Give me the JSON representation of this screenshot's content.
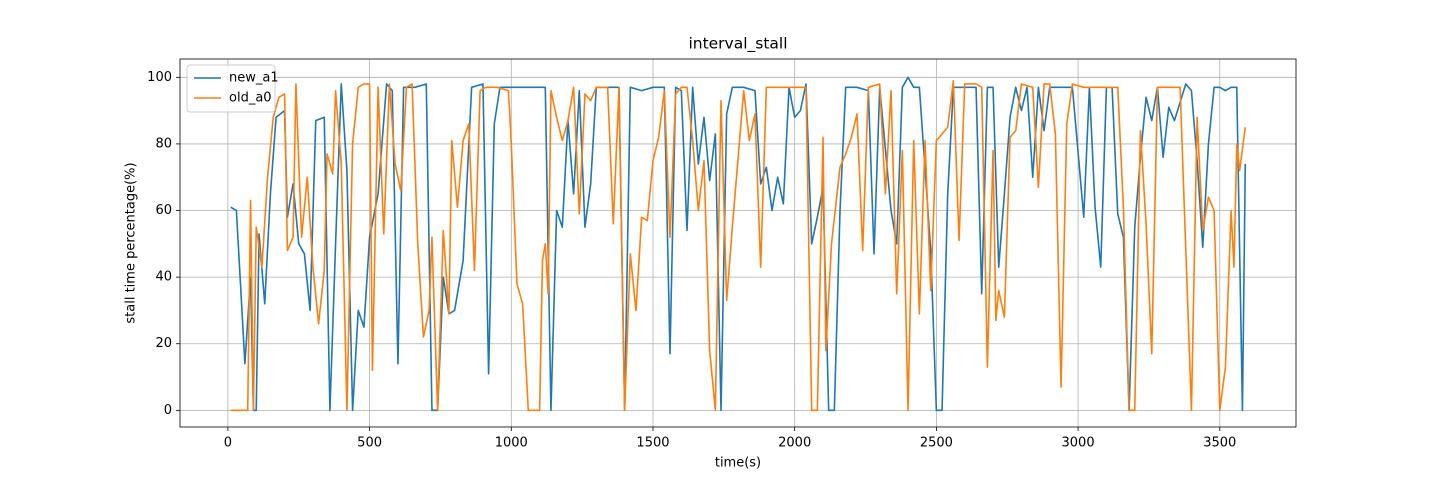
{
  "chart_data": {
    "type": "line",
    "title": "interval_stall",
    "x_label": "time(s)",
    "y_label": "stall time percentage(%)",
    "xlim": [
      -169,
      3769
    ],
    "ylim": [
      -5.0,
      105.5
    ],
    "xticks": [
      0,
      500,
      1000,
      1500,
      2000,
      2500,
      3000,
      3500
    ],
    "yticks": [
      0,
      20,
      40,
      60,
      80,
      100
    ],
    "grid": true,
    "legend": "upper left",
    "series": [
      {
        "name": "new_a1",
        "color": "#1f77b4",
        "x": [
          10,
          30,
          60,
          80,
          90,
          100,
          110,
          130,
          150,
          170,
          200,
          210,
          230,
          250,
          270,
          290,
          310,
          340,
          360,
          380,
          400,
          420,
          440,
          460,
          480,
          500,
          530,
          560,
          580,
          600,
          620,
          660,
          700,
          720,
          740,
          760,
          780,
          800,
          830,
          860,
          900,
          920,
          940,
          960,
          1000,
          1040,
          1080,
          1100,
          1120,
          1140,
          1160,
          1180,
          1200,
          1220,
          1240,
          1260,
          1280,
          1300,
          1340,
          1380,
          1400,
          1420,
          1460,
          1500,
          1540,
          1560,
          1580,
          1600,
          1620,
          1640,
          1660,
          1680,
          1700,
          1720,
          1740,
          1760,
          1780,
          1820,
          1860,
          1880,
          1900,
          1920,
          1940,
          1960,
          1980,
          2000,
          2020,
          2040,
          2060,
          2080,
          2100,
          2120,
          2140,
          2160,
          2180,
          2220,
          2260,
          2280,
          2300,
          2340,
          2360,
          2380,
          2400,
          2420,
          2440,
          2480,
          2500,
          2520,
          2540,
          2560,
          2600,
          2640,
          2660,
          2680,
          2700,
          2720,
          2740,
          2760,
          2780,
          2800,
          2820,
          2840,
          2860,
          2880,
          2900,
          2940,
          2980,
          3020,
          3040,
          3060,
          3080,
          3100,
          3120,
          3140,
          3160,
          3180,
          3200,
          3220,
          3240,
          3260,
          3280,
          3300,
          3320,
          3340,
          3380,
          3400,
          3420,
          3440,
          3460,
          3480,
          3500,
          3520,
          3540,
          3560,
          3580,
          3590
        ],
        "values": [
          61,
          60,
          14,
          40,
          0,
          0,
          53,
          32,
          65,
          88,
          90,
          58,
          68,
          50,
          47,
          30,
          87,
          88,
          0,
          50,
          98,
          72,
          0,
          30,
          25,
          52,
          65,
          98,
          96,
          14,
          97,
          97,
          98,
          0,
          0,
          40,
          29,
          30,
          45,
          97,
          98,
          11,
          86,
          97,
          97,
          97,
          97,
          97,
          97,
          0,
          60,
          55,
          87,
          65,
          96,
          55,
          68,
          97,
          97,
          97,
          0,
          97,
          96,
          97,
          97,
          17,
          97,
          96,
          54,
          97,
          74,
          88,
          69,
          83,
          0,
          89,
          97,
          97,
          96,
          68,
          73,
          60,
          70,
          62,
          97,
          88,
          90,
          98,
          50,
          58,
          67,
          0,
          0,
          60,
          97,
          97,
          96,
          47,
          97,
          60,
          50,
          97,
          100,
          97,
          97,
          48,
          0,
          0,
          65,
          97,
          97,
          97,
          35,
          97,
          97,
          43,
          65,
          88,
          97,
          90,
          97,
          70,
          97,
          84,
          97,
          97,
          97,
          58,
          97,
          61,
          43,
          97,
          97,
          59,
          52,
          0,
          55,
          76,
          94,
          87,
          97,
          76,
          91,
          87,
          98,
          96,
          75,
          49,
          80,
          97,
          97,
          96,
          97,
          97,
          0,
          74
        ]
      },
      {
        "name": "old_a0",
        "color": "#ff7f0e",
        "x": [
          10,
          40,
          70,
          80,
          90,
          100,
          120,
          140,
          160,
          180,
          200,
          210,
          230,
          240,
          260,
          280,
          300,
          320,
          340,
          350,
          370,
          380,
          400,
          420,
          440,
          460,
          480,
          500,
          510,
          530,
          550,
          570,
          590,
          610,
          630,
          650,
          670,
          690,
          710,
          720,
          740,
          760,
          780,
          790,
          810,
          830,
          850,
          870,
          890,
          910,
          950,
          990,
          1000,
          1020,
          1040,
          1060,
          1100,
          1110,
          1120,
          1130,
          1140,
          1160,
          1180,
          1200,
          1220,
          1240,
          1260,
          1280,
          1300,
          1340,
          1360,
          1380,
          1400,
          1420,
          1440,
          1460,
          1480,
          1500,
          1520,
          1540,
          1560,
          1580,
          1600,
          1620,
          1640,
          1660,
          1680,
          1700,
          1720,
          1740,
          1760,
          1780,
          1820,
          1840,
          1860,
          1880,
          1900,
          1940,
          1980,
          2020,
          2040,
          2060,
          2080,
          2100,
          2110,
          2130,
          2160,
          2180,
          2200,
          2220,
          2240,
          2260,
          2300,
          2320,
          2340,
          2360,
          2380,
          2400,
          2420,
          2440,
          2460,
          2480,
          2500,
          2540,
          2560,
          2580,
          2600,
          2640,
          2660,
          2680,
          2700,
          2710,
          2720,
          2740,
          2760,
          2780,
          2800,
          2840,
          2860,
          2880,
          2900,
          2920,
          2940,
          2960,
          2980,
          3020,
          3060,
          3100,
          3140,
          3160,
          3180,
          3200,
          3220,
          3240,
          3260,
          3280,
          3320,
          3360,
          3400,
          3420,
          3440,
          3460,
          3480,
          3500,
          3520,
          3540,
          3550,
          3560,
          3570,
          3590
        ],
        "values": [
          0,
          0,
          0,
          63,
          0,
          55,
          43,
          70,
          88,
          94,
          95,
          48,
          52,
          98,
          52,
          70,
          43,
          26,
          42,
          77,
          71,
          96,
          74,
          0,
          80,
          97,
          98,
          98,
          12,
          97,
          53,
          98,
          74,
          66,
          97,
          98,
          50,
          22,
          30,
          52,
          0,
          54,
          29,
          81,
          61,
          81,
          86,
          42,
          96,
          97,
          97,
          96,
          80,
          38,
          32,
          0,
          0,
          45,
          50,
          35,
          96,
          88,
          81,
          87,
          97,
          59,
          95,
          93,
          97,
          97,
          56,
          97,
          0,
          47,
          30,
          58,
          57,
          75,
          82,
          96,
          52,
          95,
          97,
          97,
          81,
          60,
          75,
          18,
          0,
          93,
          33,
          55,
          96,
          81,
          89,
          43,
          97,
          97,
          97,
          97,
          97,
          0,
          0,
          82,
          18,
          50,
          73,
          77,
          82,
          89,
          48,
          97,
          98,
          65,
          96,
          35,
          78,
          0,
          81,
          29,
          81,
          36,
          81,
          85,
          99,
          51,
          98,
          98,
          97,
          13,
          78,
          27,
          36,
          28,
          82,
          84,
          98,
          97,
          67,
          98,
          98,
          83,
          7,
          86,
          98,
          97,
          97,
          97,
          97,
          61,
          0,
          0,
          84,
          56,
          17,
          97,
          97,
          97,
          0,
          88,
          54,
          64,
          60,
          0,
          13,
          60,
          43,
          80,
          72,
          85
        ]
      }
    ]
  }
}
